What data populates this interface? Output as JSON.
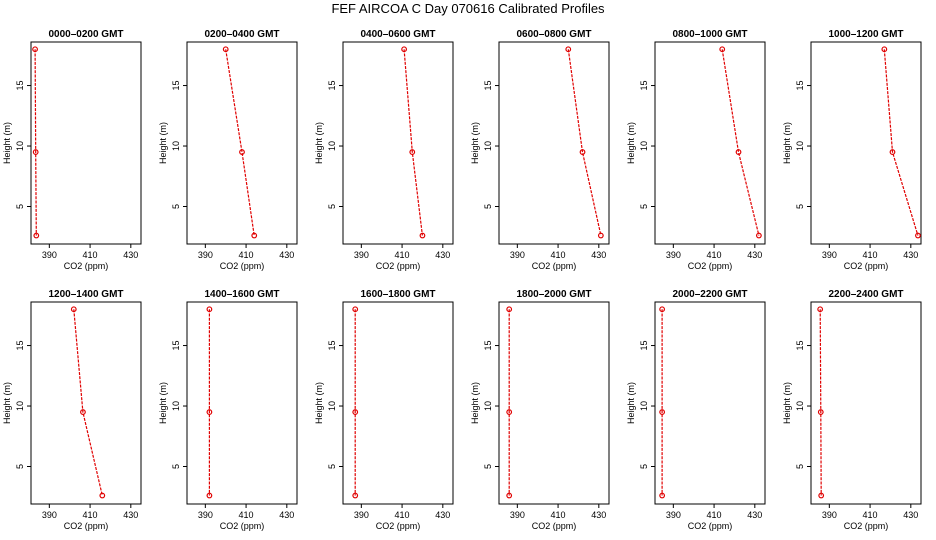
{
  "title": "FEF AIRCOA C  Day 070616  Calibrated Profiles",
  "chart_data": {
    "type": "line",
    "xlabel": "CO2 (ppm)",
    "ylabel": "Height (m)",
    "xlim": [
      381,
      435
    ],
    "ylim": [
      1.9,
      18.6
    ],
    "xticks": [
      390,
      410,
      430
    ],
    "yticks": [
      5,
      10,
      15
    ],
    "line_color": "#e00000",
    "panels": [
      {
        "title": "0000–0200 GMT",
        "heights": [
          18.0,
          9.5,
          2.6
        ],
        "co2": [
          383.0,
          383.3,
          383.6
        ]
      },
      {
        "title": "0200–0400 GMT",
        "heights": [
          18.0,
          9.5,
          2.6
        ],
        "co2": [
          400.0,
          408.0,
          414.0
        ]
      },
      {
        "title": "0400–0600 GMT",
        "heights": [
          18.0,
          9.5,
          2.6
        ],
        "co2": [
          411.0,
          415.0,
          420.0
        ]
      },
      {
        "title": "0600–0800 GMT",
        "heights": [
          18.0,
          9.5,
          2.6
        ],
        "co2": [
          415.0,
          422.0,
          431.0
        ]
      },
      {
        "title": "0800–1000 GMT",
        "heights": [
          18.0,
          9.5,
          2.6
        ],
        "co2": [
          414.0,
          422.0,
          432.0
        ]
      },
      {
        "title": "1000–1200 GMT",
        "heights": [
          18.0,
          9.5,
          2.6
        ],
        "co2": [
          417.0,
          421.0,
          433.5
        ]
      },
      {
        "title": "1200–1400 GMT",
        "heights": [
          18.0,
          9.5,
          2.6
        ],
        "co2": [
          402.0,
          406.5,
          416.0
        ]
      },
      {
        "title": "1400–1600 GMT",
        "heights": [
          18.0,
          9.5,
          2.6
        ],
        "co2": [
          392.0,
          392.0,
          392.0
        ]
      },
      {
        "title": "1600–1800 GMT",
        "heights": [
          18.0,
          9.5,
          2.6
        ],
        "co2": [
          387.0,
          387.0,
          387.0
        ]
      },
      {
        "title": "1800–2000 GMT",
        "heights": [
          18.0,
          9.5,
          2.6
        ],
        "co2": [
          386.0,
          386.0,
          386.0
        ]
      },
      {
        "title": "2000–2200 GMT",
        "heights": [
          18.0,
          9.5,
          2.6
        ],
        "co2": [
          384.5,
          384.5,
          384.5
        ]
      },
      {
        "title": "2200–2400 GMT",
        "heights": [
          18.0,
          9.5,
          2.6
        ],
        "co2": [
          385.5,
          385.8,
          386.0
        ]
      }
    ]
  }
}
